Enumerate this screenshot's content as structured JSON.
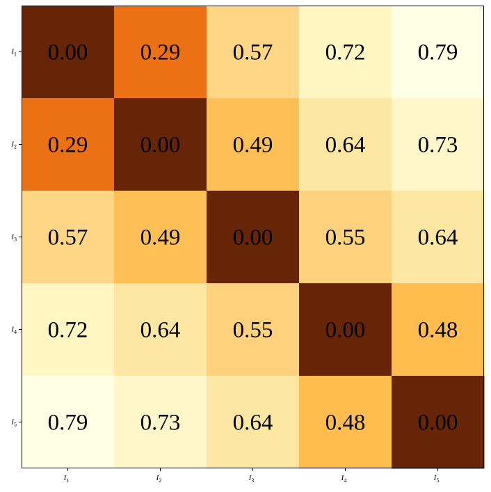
{
  "chart_data": {
    "type": "heatmap",
    "row_labels": [
      "I1",
      "I2",
      "I3",
      "I4",
      "I5"
    ],
    "col_labels": [
      "I1",
      "I2",
      "I3",
      "I4",
      "I5"
    ],
    "label_base": "I",
    "label_subscripts": [
      "1",
      "2",
      "3",
      "4",
      "5"
    ],
    "values": [
      [
        0.0,
        0.29,
        0.57,
        0.72,
        0.79
      ],
      [
        0.29,
        0.0,
        0.49,
        0.64,
        0.73
      ],
      [
        0.57,
        0.49,
        0.0,
        0.55,
        0.64
      ],
      [
        0.72,
        0.64,
        0.55,
        0.0,
        0.48
      ],
      [
        0.79,
        0.73,
        0.64,
        0.48,
        0.0
      ]
    ],
    "value_labels": [
      [
        "0.00",
        "0.29",
        "0.57",
        "0.72",
        "0.79"
      ],
      [
        "0.29",
        "0.00",
        "0.49",
        "0.64",
        "0.73"
      ],
      [
        "0.57",
        "0.49",
        "0.00",
        "0.55",
        "0.64"
      ],
      [
        "0.72",
        "0.64",
        "0.55",
        "0.00",
        "0.48"
      ],
      [
        "0.79",
        "0.73",
        "0.64",
        "0.48",
        "0.00"
      ]
    ],
    "colormap": "YlOrBr",
    "color_stops": [
      {
        "t": 0.0,
        "color": "#662506"
      },
      {
        "t": 0.29,
        "color": "#ec7014"
      },
      {
        "t": 0.48,
        "color": "#febd4e"
      },
      {
        "t": 0.55,
        "color": "#fed27c"
      },
      {
        "t": 0.64,
        "color": "#fee6a3"
      },
      {
        "t": 0.72,
        "color": "#fff6c4"
      },
      {
        "t": 0.79,
        "color": "#ffffe5"
      }
    ],
    "value_range": [
      0.0,
      0.79
    ],
    "text_color": "#000000",
    "grid": false,
    "legend": "none"
  }
}
